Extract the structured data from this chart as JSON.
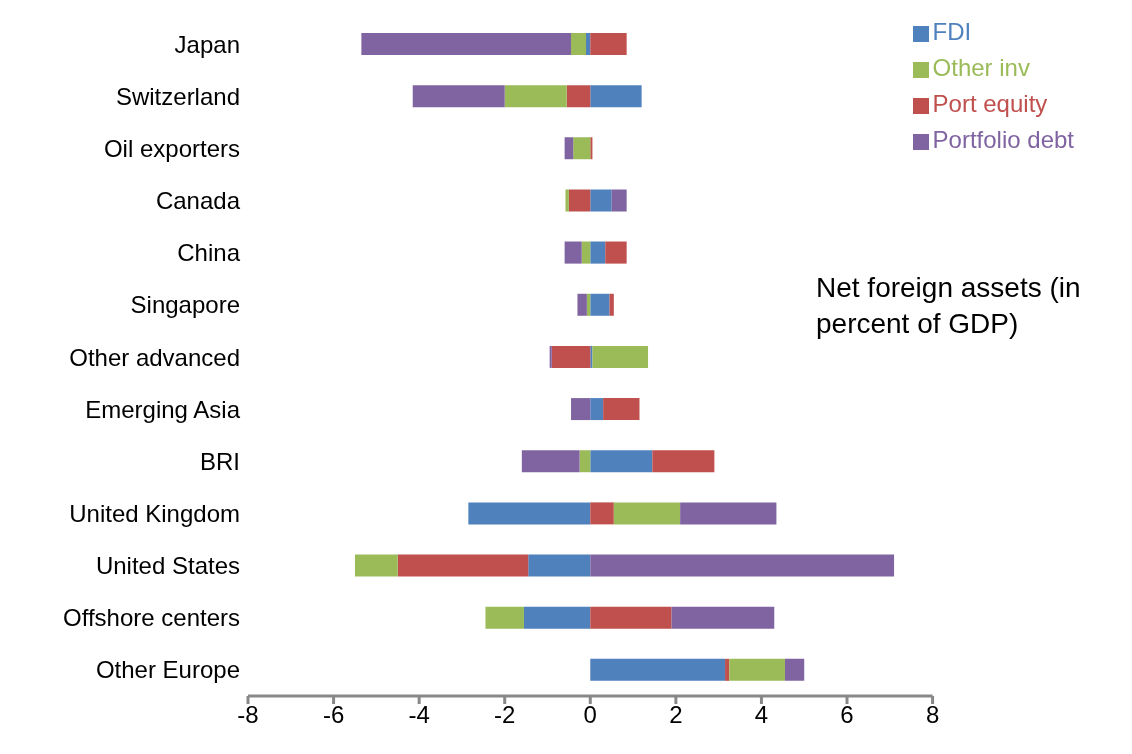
{
  "chart_data": {
    "type": "bar",
    "orientation": "horizontal",
    "stacked": true,
    "categories": [
      "Japan",
      "Switzerland",
      "Oil exporters",
      "Canada",
      "China",
      "Singapore",
      "Other advanced",
      "Emerging Asia",
      "BRI",
      "United Kingdom",
      "United States",
      "Offshore centers",
      "Other Europe"
    ],
    "series": [
      {
        "name": "FDI",
        "color": "#4f81bd",
        "values": [
          -0.1,
          1.2,
          0,
          0.5,
          0.35,
          0.45,
          0.05,
          0.3,
          1.45,
          -2.85,
          -1.45,
          -1.55,
          3.15
        ]
      },
      {
        "name": "Port equity",
        "color": "#c0504d",
        "values": [
          0.85,
          -0.55,
          0.05,
          -0.5,
          0.5,
          0.1,
          -0.9,
          0.85,
          1.45,
          0.55,
          -3.05,
          1.9,
          0.1
        ]
      },
      {
        "name": "Other inv",
        "color": "#9bbb59",
        "values": [
          -0.35,
          -1.45,
          -0.4,
          -0.08,
          -0.2,
          -0.08,
          1.3,
          0,
          -0.25,
          1.55,
          -1.0,
          -0.9,
          1.3
        ]
      },
      {
        "name": "Portfolio debt",
        "color": "#8064a2",
        "values": [
          -4.9,
          -2.15,
          -0.2,
          0.35,
          -0.4,
          -0.22,
          -0.05,
          -0.45,
          -1.35,
          2.25,
          7.1,
          2.4,
          0.45
        ]
      }
    ],
    "xlim": [
      -8,
      8
    ],
    "xticks": [
      -8,
      -6,
      -4,
      -2,
      0,
      2,
      4,
      6,
      8
    ],
    "annotations": [
      "Net foreign assets (in percent of GDP)"
    ],
    "legend": "top right",
    "grid": false
  }
}
